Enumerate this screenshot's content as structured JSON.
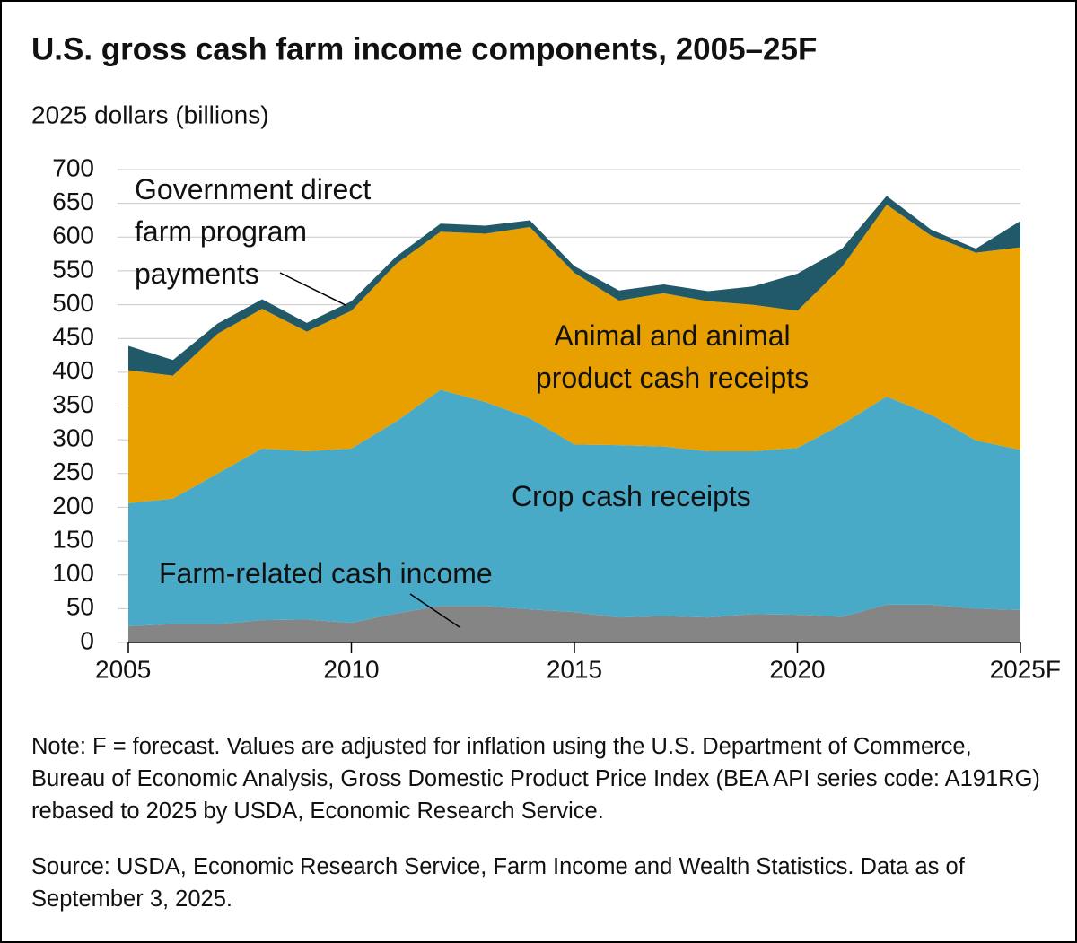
{
  "chart_data": {
    "type": "stacked_area",
    "title": "U.S. gross cash farm income components, 2005–25F",
    "y_label": "2025 dollars (billions)",
    "x": [
      2005,
      2006,
      2007,
      2008,
      2009,
      2010,
      2011,
      2012,
      2013,
      2014,
      2015,
      2016,
      2017,
      2018,
      2019,
      2020,
      2021,
      2022,
      2023,
      2024,
      2025
    ],
    "xlim": [
      2005,
      2025
    ],
    "xticks": [
      2005,
      2010,
      2015,
      2020,
      {
        "value": 2025,
        "label": "2025F"
      }
    ],
    "ylim": [
      0,
      700
    ],
    "yticks": [
      0,
      50,
      100,
      150,
      200,
      250,
      300,
      350,
      400,
      450,
      500,
      550,
      600,
      650,
      700
    ],
    "grid": true,
    "series": [
      {
        "name": "Farm-related cash income",
        "color": "#858585",
        "values": [
          24,
          27,
          27,
          33,
          34,
          29,
          43,
          54,
          54,
          49,
          45,
          37,
          39,
          37,
          42,
          41,
          38,
          56,
          56,
          50,
          48
        ]
      },
      {
        "name": "Crop cash receipts",
        "color": "#49aac8",
        "values": [
          182,
          186,
          223,
          254,
          249,
          258,
          284,
          320,
          302,
          283,
          248,
          255,
          251,
          246,
          241,
          247,
          285,
          308,
          281,
          249,
          237
        ]
      },
      {
        "name": "Animal and animal product cash receipts",
        "color": "#e8a000",
        "values": [
          197,
          182,
          207,
          207,
          177,
          204,
          233,
          234,
          249,
          283,
          254,
          214,
          227,
          222,
          217,
          203,
          233,
          284,
          265,
          278,
          300
        ]
      },
      {
        "name": "Government direct farm program payments",
        "color": "#215968",
        "values": [
          36,
          23,
          15,
          14,
          13,
          14,
          11,
          12,
          12,
          10,
          10,
          15,
          13,
          15,
          27,
          55,
          27,
          13,
          9,
          6,
          39
        ]
      }
    ],
    "note": "Note: F = forecast. Values are adjusted for inflation using the U.S. Department of Commerce, Bureau of Economic Analysis, Gross Domestic Product Price Index (BEA API series code: A191RG) rebased to 2025 by USDA, Economic Research Service.",
    "source": "Source: USDA, Economic Research Service, Farm Income and Wealth Statistics. Data as of September 3, 2025."
  }
}
